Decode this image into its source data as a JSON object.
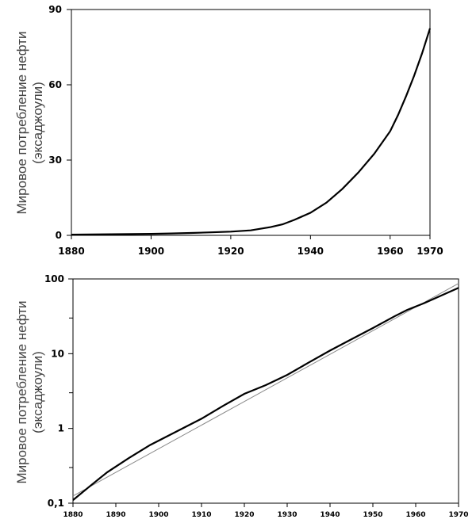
{
  "chart_data": [
    {
      "type": "line",
      "ylabel_line1": "Мировое потребление нефти",
      "ylabel_line2": "(эксаджоули)",
      "xlim": [
        1880,
        1970
      ],
      "ylim": [
        0,
        90
      ],
      "x_ticks": [
        "1880",
        "1900",
        "1920",
        "1940",
        "1960",
        "1970"
      ],
      "y_ticks": [
        "0",
        "30",
        "60",
        "90"
      ],
      "series": [
        {
          "x": [
            1880,
            1890,
            1900,
            1905,
            1910,
            1915,
            1920,
            1925,
            1930,
            1933,
            1936,
            1940,
            1944,
            1948,
            1952,
            1956,
            1960,
            1962,
            1964,
            1966,
            1968,
            1970
          ],
          "y": [
            0.3,
            0.45,
            0.6,
            0.75,
            0.95,
            1.2,
            1.5,
            2.0,
            3.3,
            4.4,
            6.2,
            9.0,
            13.0,
            18.5,
            25.0,
            32.5,
            41.5,
            48.0,
            55.5,
            63.5,
            72.5,
            82.5
          ]
        }
      ]
    },
    {
      "type": "line",
      "scale_y": "log",
      "ylabel_line1": "Мировое потребление нефти",
      "ylabel_line2": "(эксаджоули)",
      "xlim": [
        1880,
        1970
      ],
      "ylim": [
        0.1,
        100
      ],
      "x_ticks": [
        "1880",
        "1890",
        "1900",
        "1910",
        "1920",
        "1930",
        "1940",
        "1950",
        "1960",
        "1970"
      ],
      "y_ticks": [
        "0,1",
        "1",
        "10",
        "100"
      ],
      "y_tick_values": [
        0.1,
        1,
        10,
        100
      ],
      "series": [
        {
          "x": [
            1880,
            1884,
            1888,
            1893,
            1898,
            1904,
            1910,
            1915,
            1920,
            1925,
            1930,
            1935,
            1940,
            1945,
            1950,
            1955,
            1958,
            1962,
            1966,
            1970
          ],
          "y": [
            0.11,
            0.17,
            0.26,
            0.4,
            0.6,
            0.9,
            1.35,
            2.0,
            2.9,
            3.8,
            5.2,
            7.6,
            11.0,
            15.6,
            22.0,
            31.5,
            38.5,
            47.5,
            60.0,
            76.0
          ]
        },
        {
          "x": [
            1880,
            1970
          ],
          "y": [
            0.125,
            87
          ]
        }
      ]
    }
  ]
}
